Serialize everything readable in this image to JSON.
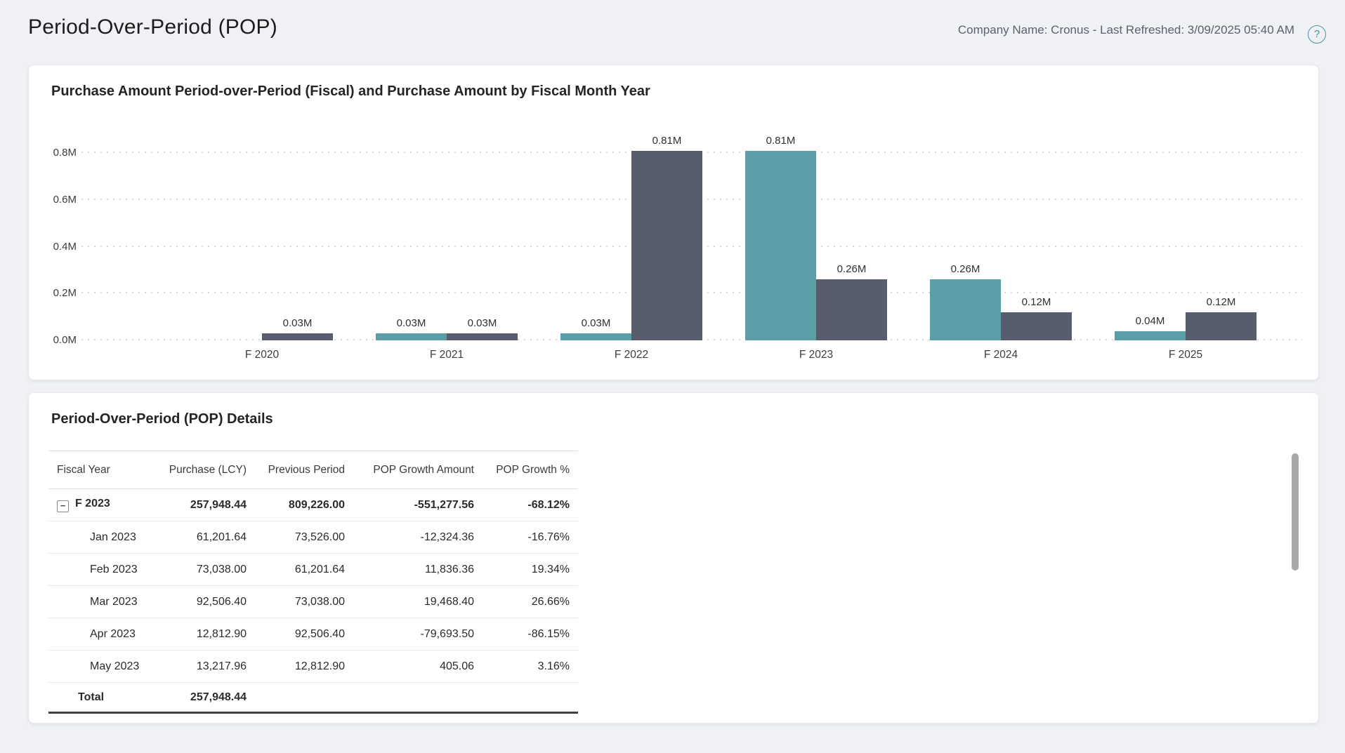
{
  "page": {
    "title": "Period-Over-Period (POP)",
    "company_meta": "Company Name: Cronus - Last Refreshed: 3/09/2025 05:40 AM",
    "help_icon": "?"
  },
  "colors": {
    "page_bg": "#eff1f4",
    "card_bg": "#ffffff",
    "pop_series_teal": "#5b9ea8",
    "purchase_series_gray": "#575d6c",
    "help_icon_teal": "#4796a2",
    "gridline": "#d6d8dc",
    "scrollbar": "#a8a8a8"
  },
  "chart_data": {
    "type": "bar",
    "title": "Purchase Amount Period-over-Period (Fiscal) and Purchase Amount by Fiscal Month Year",
    "categories": [
      "F 2020",
      "F 2021",
      "F 2022",
      "F 2023",
      "F 2024",
      "F 2025"
    ],
    "series": [
      {
        "name": "Purchase Amount Period-over-Period (Fiscal)",
        "color": "#5b9ea8",
        "values": [
          null,
          0.03,
          0.03,
          0.81,
          0.26,
          0.04
        ],
        "labels": [
          null,
          "0.03M",
          "0.03M",
          "0.81M",
          "0.26M",
          "0.04M"
        ]
      },
      {
        "name": "Purchase Amount",
        "color": "#575d6c",
        "values": [
          0.03,
          0.03,
          0.81,
          0.26,
          0.12,
          0.12
        ],
        "labels": [
          "0.03M",
          "0.03M",
          "0.81M",
          "0.26M",
          "0.12M",
          "0.12M"
        ]
      }
    ],
    "y_axis": {
      "max": 0.8,
      "ticks": [
        {
          "value": 0.0,
          "label": "0.0M"
        },
        {
          "value": 0.2,
          "label": "0.2M"
        },
        {
          "value": 0.4,
          "label": "0.4M"
        },
        {
          "value": 0.6,
          "label": "0.6M"
        },
        {
          "value": 0.8,
          "label": "0.8M"
        }
      ]
    },
    "xlabel": "",
    "ylabel": "",
    "legend": "none",
    "grid": "horizontal-dotted"
  },
  "details_table": {
    "title": "Period-Over-Period (POP) Details",
    "columns": [
      "Fiscal Year",
      "Purchase (LCY)",
      "Previous Period",
      "POP Growth Amount",
      "POP Growth %"
    ],
    "rows": [
      {
        "label": "F 2023",
        "expandable": true,
        "bold": true,
        "indent": false,
        "values": [
          "257,948.44",
          "809,226.00",
          "-551,277.56",
          "-68.12%"
        ]
      },
      {
        "label": "Jan 2023",
        "expandable": false,
        "bold": false,
        "indent": true,
        "values": [
          "61,201.64",
          "73,526.00",
          "-12,324.36",
          "-16.76%"
        ]
      },
      {
        "label": "Feb 2023",
        "expandable": false,
        "bold": false,
        "indent": true,
        "values": [
          "73,038.00",
          "61,201.64",
          "11,836.36",
          "19.34%"
        ]
      },
      {
        "label": "Mar 2023",
        "expandable": false,
        "bold": false,
        "indent": true,
        "values": [
          "92,506.40",
          "73,038.00",
          "19,468.40",
          "26.66%"
        ]
      },
      {
        "label": "Apr 2023",
        "expandable": false,
        "bold": false,
        "indent": true,
        "values": [
          "12,812.90",
          "92,506.40",
          "-79,693.50",
          "-86.15%"
        ]
      },
      {
        "label": "May 2023",
        "expandable": false,
        "bold": false,
        "indent": true,
        "values": [
          "13,217.96",
          "12,812.90",
          "405.06",
          "3.16%"
        ]
      }
    ],
    "total_row": {
      "label": "Total",
      "purchase": "257,948.44"
    },
    "collapse_icon": "−"
  }
}
